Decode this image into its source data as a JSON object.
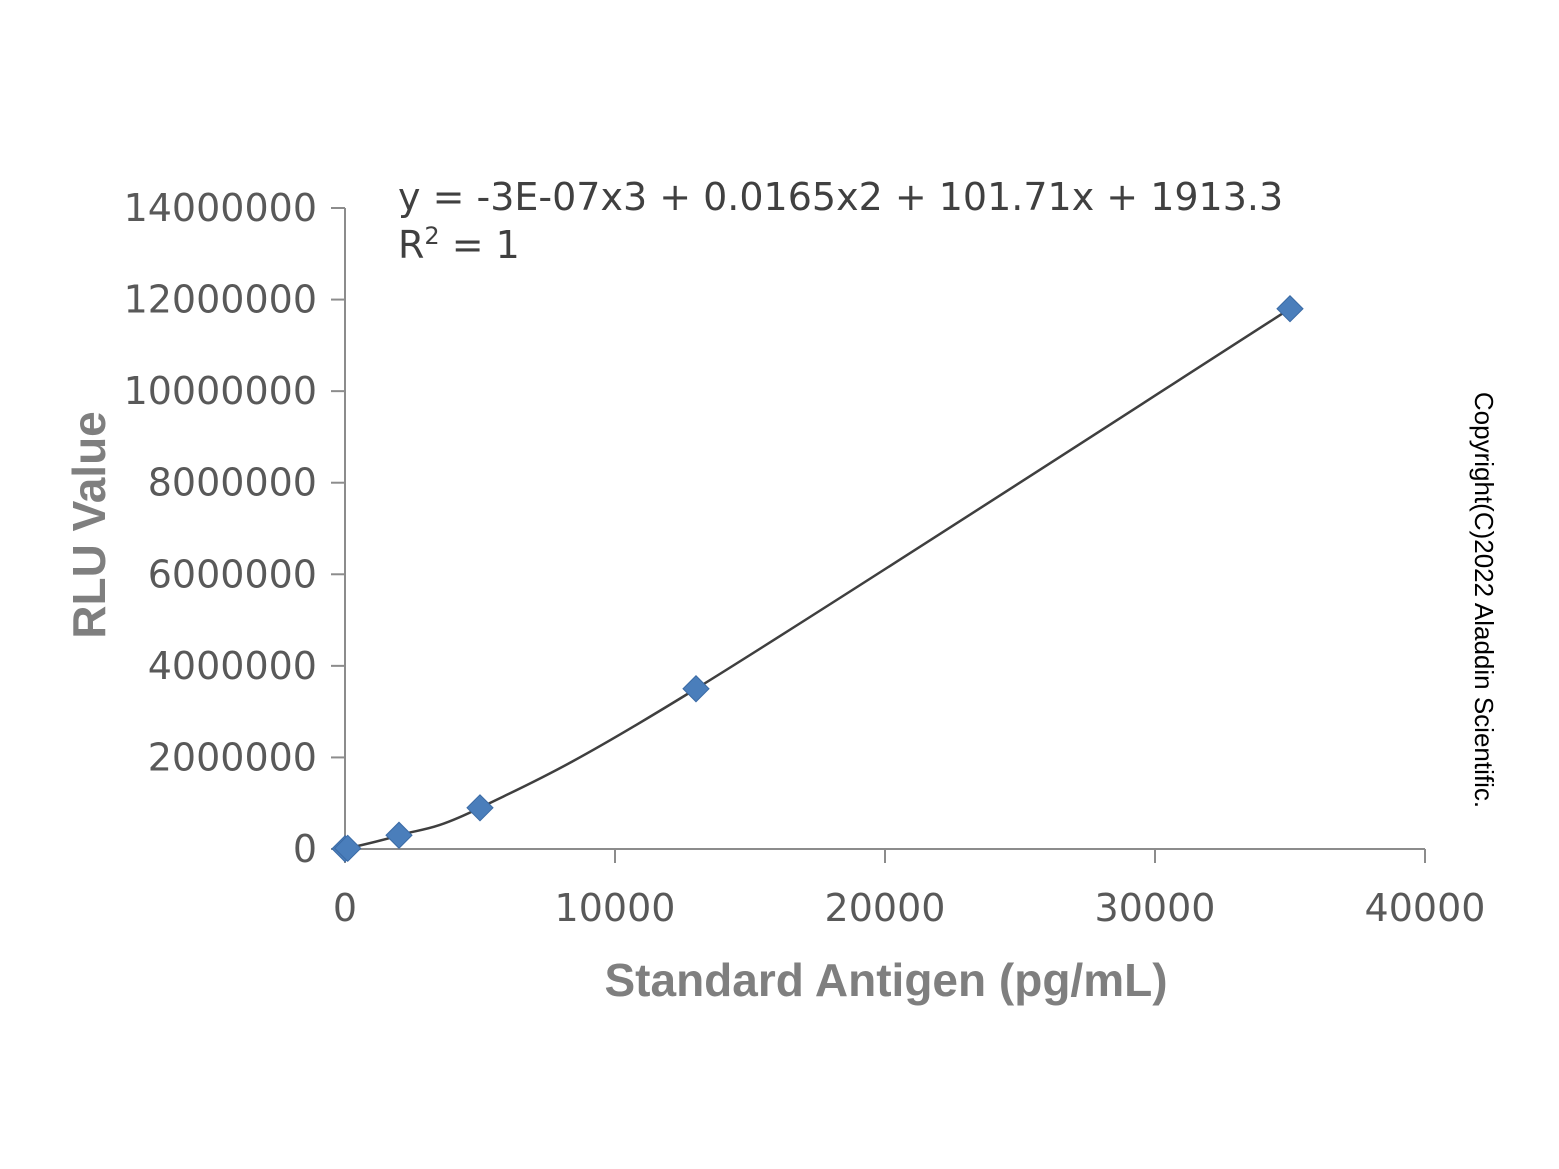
{
  "chart_data": {
    "type": "scatter",
    "xlabel": "Standard Antigen (pg/mL)",
    "ylabel": "RLU Value",
    "xlim": [
      0,
      40000
    ],
    "ylim": [
      0,
      14000000
    ],
    "x_ticks": [
      "0",
      "10000",
      "20000",
      "30000",
      "40000"
    ],
    "y_ticks": [
      "0",
      "2000000",
      "4000000",
      "6000000",
      "8000000",
      "10000000",
      "12000000",
      "14000000"
    ],
    "grid": false,
    "marker_color": "#4a7ebb",
    "trendline_color": "#3f3f3f",
    "series": [
      {
        "x": [
          0,
          100,
          2000,
          5000,
          13000,
          35000
        ],
        "y": [
          5000,
          15000,
          300000,
          900000,
          3500000,
          11800000
        ]
      }
    ],
    "trendline": {
      "type": "polynomial",
      "order": 3,
      "equation": "y = -3E-07x3 + 0.0165x2 + 101.71x + 1913.3",
      "r2_prefix": "R",
      "r2_sup": "2",
      "r2_suffix": " = 1"
    }
  },
  "copyright": "Copyright(C)2022 Aladdin Scientific."
}
